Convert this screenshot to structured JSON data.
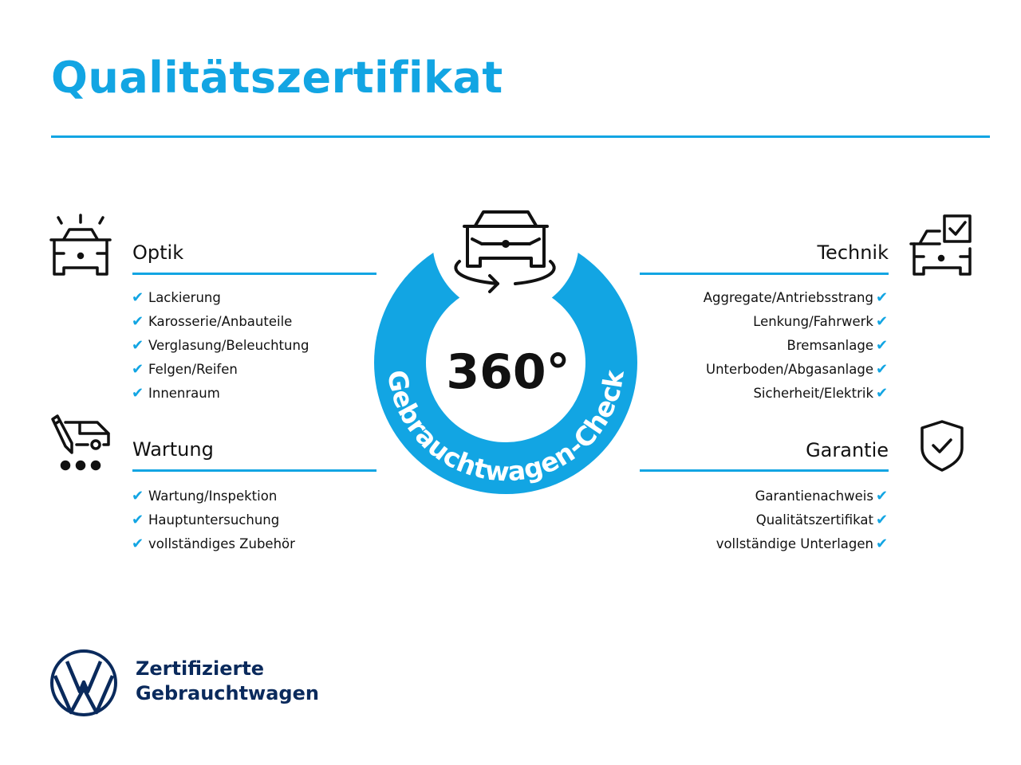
{
  "title": "Qualitätszertifikat",
  "accent_color": "#12a5e3",
  "brand_color": "#0a2a5c",
  "check_icon": "✔",
  "center": {
    "degrees": "360°",
    "ring_text": "Gebrauchtwagen-Check",
    "icon": "car-rotate-icon"
  },
  "sections": {
    "optik": {
      "heading": "Optik",
      "icon": "car-lights-icon",
      "items": [
        "Lackierung",
        "Karosserie/Anbauteile",
        "Verglasung/Beleuchtung",
        "Felgen/Reifen",
        "Innenraum"
      ]
    },
    "wartung": {
      "heading": "Wartung",
      "icon": "service-van-icon",
      "items": [
        "Wartung/Inspektion",
        "Hauptuntersuchung",
        "vollständiges Zubehör"
      ]
    },
    "technik": {
      "heading": "Technik",
      "icon": "car-checkbox-icon",
      "items": [
        "Aggregate/Antriebsstrang",
        "Lenkung/Fahrwerk",
        "Bremsanlage",
        "Unterboden/Abgasanlage",
        "Sicherheit/Elektrik"
      ]
    },
    "garantie": {
      "heading": "Garantie",
      "icon": "shield-check-icon",
      "items": [
        "Garantienachweis",
        "Qualitätszertifikat",
        "vollständige Unterlagen"
      ]
    }
  },
  "footer": {
    "line1": "Zertifizierte",
    "line2": "Gebrauchtwagen",
    "logo": "VW"
  }
}
